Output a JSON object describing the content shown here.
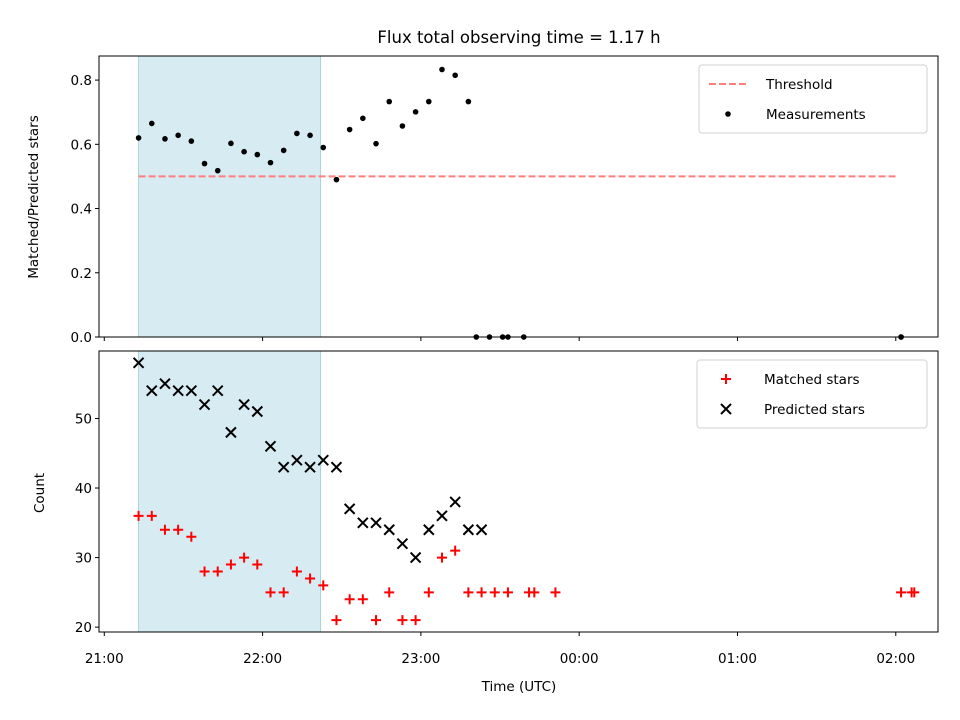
{
  "chart_data": [
    {
      "type": "scatter",
      "title": "Flux total observing time = 1.17 h",
      "xlabel": "",
      "ylabel": "Matched/Predicted stars",
      "ylim": [
        0,
        0.875
      ],
      "yticks": [
        0.0,
        0.2,
        0.4,
        0.6,
        0.8
      ],
      "ytick_labels": [
        "0.0",
        "0.2",
        "0.4",
        "0.6",
        "0.8"
      ],
      "legend": {
        "placement": "top-right",
        "entries": [
          "Threshold",
          "Measurements"
        ]
      },
      "grid": false,
      "shaded_span": {
        "x": [
          "21:13",
          "22:22"
        ],
        "color": "#add8e6"
      },
      "series": [
        {
          "name": "Threshold",
          "kind": "dashed-line",
          "color": "#ff7f7f",
          "x": [
            "21:13",
            "02:00"
          ],
          "y": [
            0.5,
            0.5
          ]
        },
        {
          "name": "Measurements",
          "kind": "points",
          "color": "#000000",
          "x": [
            "21:13",
            "21:18",
            "21:23",
            "21:28",
            "21:33",
            "21:38",
            "21:43",
            "21:48",
            "21:53",
            "21:58",
            "22:03",
            "22:08",
            "22:13",
            "22:18",
            "22:23",
            "22:28",
            "22:33",
            "22:38",
            "22:43",
            "22:48",
            "22:53",
            "22:58",
            "23:03",
            "23:08",
            "23:13",
            "23:18",
            "23:21",
            "23:26",
            "23:31",
            "23:33",
            "23:39",
            "02:02",
            "02:02"
          ],
          "y": [
            0.62,
            0.665,
            0.617,
            0.628,
            0.61,
            0.54,
            0.518,
            0.603,
            0.577,
            0.568,
            0.543,
            0.581,
            0.634,
            0.628,
            0.59,
            0.49,
            0.646,
            0.681,
            0.602,
            0.733,
            0.657,
            0.701,
            0.733,
            0.833,
            0.815,
            0.733,
            0.0,
            0.0,
            0.0,
            0.0,
            0.0,
            0.0,
            0.0
          ]
        }
      ]
    },
    {
      "type": "scatter",
      "title": "",
      "xlabel": "Time (UTC)",
      "ylabel": "Count",
      "ylim": [
        19.3,
        59.7
      ],
      "yticks": [
        20,
        30,
        40,
        50
      ],
      "ytick_labels": [
        "20",
        "30",
        "40",
        "50"
      ],
      "xlim": [
        "20:58",
        "02:16"
      ],
      "xticks": [
        "21:00",
        "22:00",
        "23:00",
        "00:00",
        "01:00",
        "02:00"
      ],
      "legend": {
        "placement": "top-right",
        "entries": [
          "Matched stars",
          "Predicted stars"
        ]
      },
      "grid": false,
      "shaded_span": {
        "x": [
          "21:13",
          "22:22"
        ],
        "color": "#add8e6"
      },
      "series": [
        {
          "name": "Matched stars",
          "marker": "plus",
          "color": "#ff0000",
          "x": [
            "21:13",
            "21:18",
            "21:23",
            "21:28",
            "21:33",
            "21:38",
            "21:43",
            "21:48",
            "21:53",
            "21:58",
            "22:03",
            "22:08",
            "22:13",
            "22:18",
            "22:23",
            "22:28",
            "22:33",
            "22:38",
            "22:43",
            "22:48",
            "22:53",
            "22:58",
            "23:03",
            "23:08",
            "23:13",
            "23:18",
            "23:23",
            "23:28",
            "23:33",
            "23:41",
            "23:43",
            "23:51",
            "02:02",
            "02:06",
            "02:07"
          ],
          "y": [
            36,
            36,
            34,
            34,
            33,
            28,
            28,
            29,
            30,
            29,
            25,
            25,
            28,
            27,
            26,
            21,
            24,
            24,
            21,
            25,
            21,
            21,
            25,
            30,
            31,
            25,
            25,
            25,
            25,
            25,
            25,
            25,
            25,
            25,
            25
          ]
        },
        {
          "name": "Predicted stars",
          "marker": "x",
          "color": "#000000",
          "x": [
            "21:13",
            "21:18",
            "21:23",
            "21:28",
            "21:33",
            "21:38",
            "21:43",
            "21:48",
            "21:53",
            "21:58",
            "22:03",
            "22:08",
            "22:13",
            "22:18",
            "22:23",
            "22:28",
            "22:33",
            "22:38",
            "22:43",
            "22:48",
            "22:53",
            "22:58",
            "23:03",
            "23:08",
            "23:13",
            "23:18",
            "23:23"
          ],
          "y": [
            58,
            54,
            55,
            54,
            54,
            52,
            54,
            48,
            52,
            51,
            46,
            43,
            44,
            43,
            44,
            43,
            37,
            35,
            35,
            34,
            32,
            30,
            34,
            36,
            38,
            34,
            34
          ]
        }
      ]
    }
  ]
}
